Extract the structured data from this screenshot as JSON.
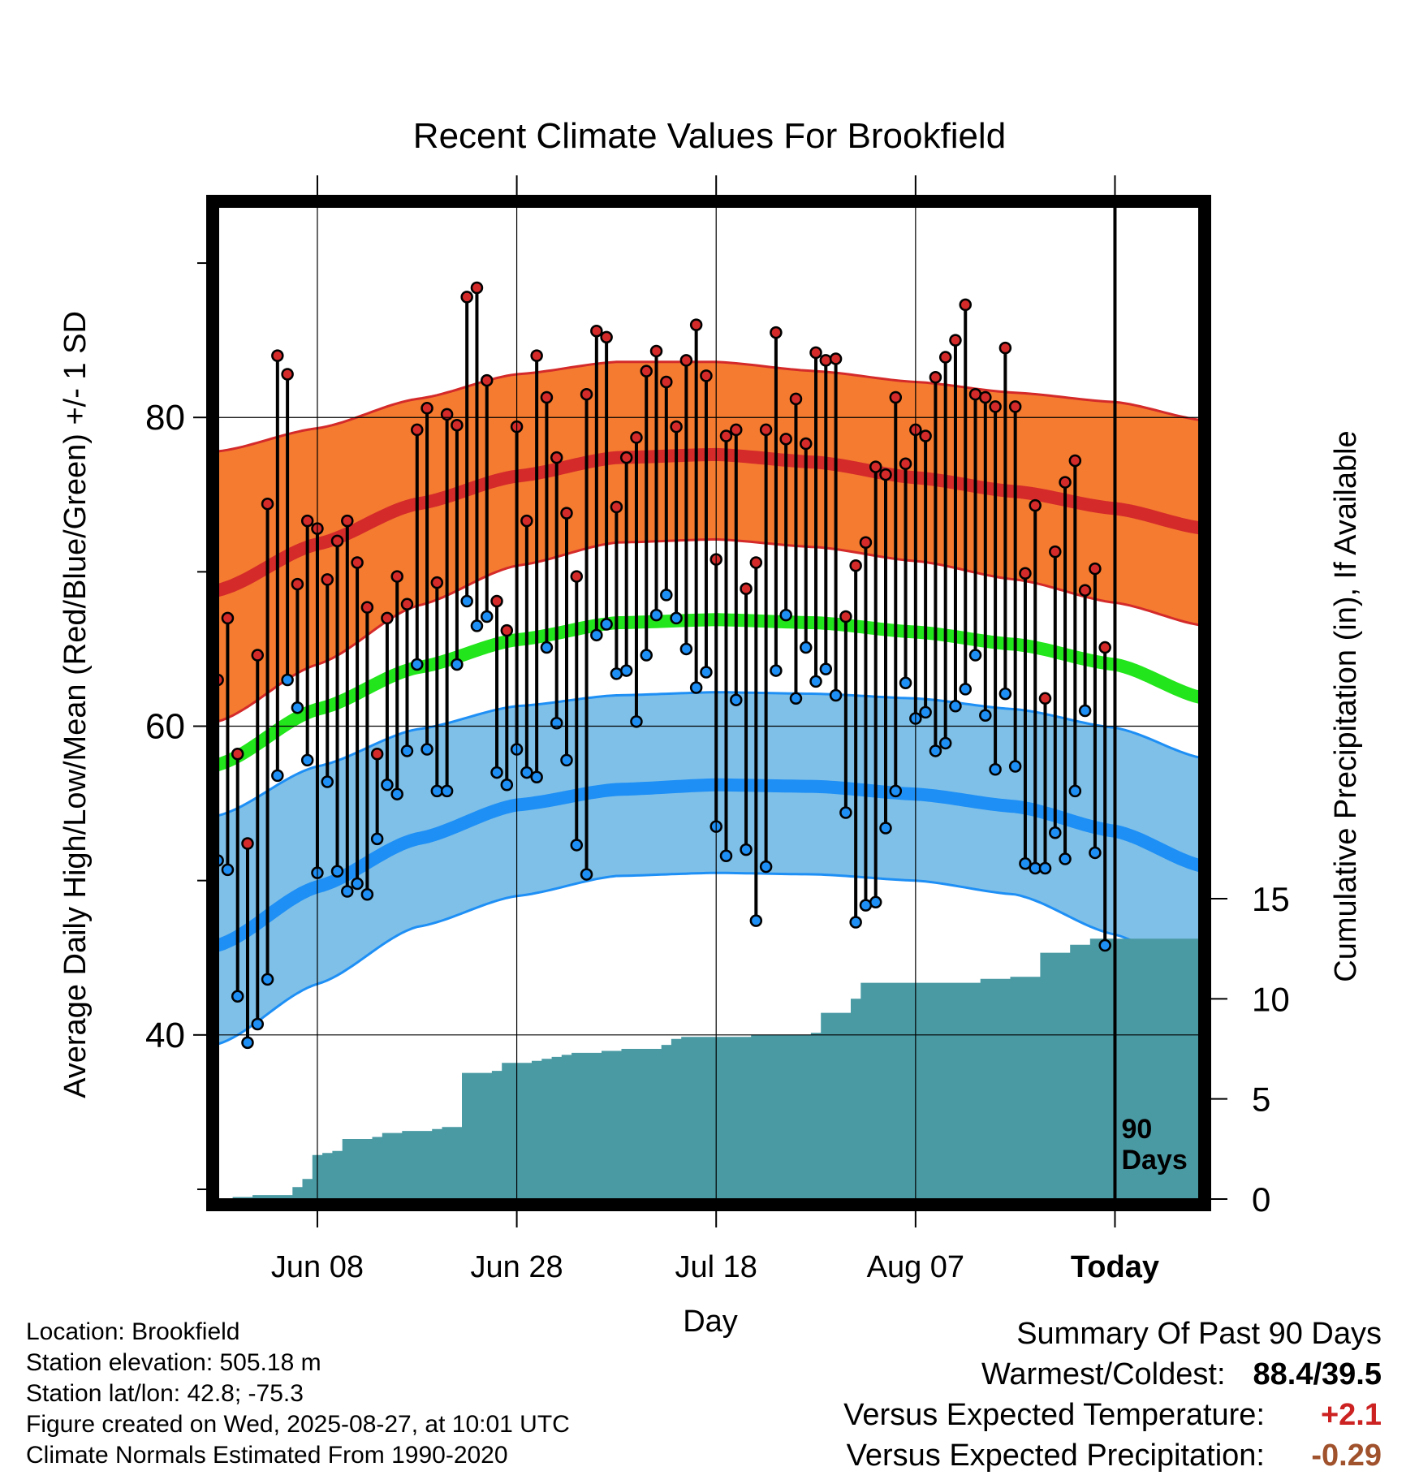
{
  "chart_data": {
    "type": "line",
    "title": "Recent Climate Values For Brookfield",
    "xlabel": "Day",
    "ylabel": "Average Daily High/Low/Mean (Red/Blue/Green) +/- 1 SD",
    "y2label": "Cumulative Precipitation (in), If Available",
    "ylim": [
      29,
      94
    ],
    "y2lim": [
      0,
      15
    ],
    "yticks": [
      "40",
      "60",
      "80"
    ],
    "y2ticks": [
      "0",
      "5",
      "10",
      "15"
    ],
    "xticks": [
      "Jun 08",
      "Jun 28",
      "Jul 18",
      "Aug 07",
      "Today"
    ],
    "x_tick_days": [
      11,
      31,
      51,
      71,
      91
    ],
    "xlim": [
      0.5,
      100
    ],
    "period_label": [
      "90",
      "Days"
    ],
    "grid": true,
    "colors": {
      "normal_high": "#d42a2a",
      "high_band": "#f47b30",
      "normal_low": "#1e8ff5",
      "low_band": "#7fc0e8",
      "normal_mean": "#22e51b",
      "precip": "#4a9aa4",
      "obs_high": "#d42a2a",
      "obs_low": "#1e8ff5"
    },
    "normals": {
      "days": [
        1,
        11,
        21,
        31,
        41,
        51,
        61,
        71,
        81,
        91,
        100
      ],
      "high": [
        68.8,
        71.8,
        74.4,
        76.2,
        77.4,
        77.6,
        77.1,
        76.1,
        75.2,
        74.1,
        72.8
      ],
      "high_upper": [
        77.8,
        79.3,
        81.2,
        82.8,
        83.6,
        83.6,
        83.0,
        82.3,
        81.6,
        81.0,
        79.8
      ],
      "high_lower": [
        60.3,
        64.0,
        67.8,
        70.4,
        71.9,
        72.1,
        71.6,
        70.7,
        69.5,
        68.0,
        66.5
      ],
      "low": [
        45.8,
        49.6,
        52.7,
        54.9,
        55.9,
        56.2,
        56.1,
        55.6,
        54.8,
        53.2,
        50.9
      ],
      "low_upper": [
        54.2,
        57.4,
        59.8,
        61.3,
        62.0,
        62.2,
        62.1,
        61.8,
        61.1,
        59.9,
        57.9
      ],
      "low_lower": [
        39.4,
        43.3,
        47.0,
        49.0,
        50.3,
        50.5,
        50.4,
        50.0,
        49.1,
        46.5,
        43.7
      ],
      "mean": [
        57.5,
        61.1,
        63.8,
        65.6,
        66.7,
        66.9,
        66.7,
        66.1,
        65.3,
        64.0,
        61.8
      ]
    },
    "observed": {
      "start_day": 1,
      "high": [
        63.0,
        67.0,
        58.2,
        52.4,
        64.6,
        74.4,
        84.0,
        82.8,
        69.2,
        73.3,
        72.8,
        69.5,
        72.0,
        73.3,
        70.6,
        67.7,
        58.2,
        67.0,
        69.7,
        67.9,
        79.2,
        80.6,
        69.3,
        80.2,
        79.5,
        87.8,
        88.4,
        82.4,
        68.1,
        66.2,
        79.4,
        73.3,
        84.0,
        81.3,
        77.4,
        73.8,
        69.7,
        81.5,
        85.6,
        85.2,
        74.2,
        77.4,
        78.7,
        83.0,
        84.3,
        82.3,
        79.4,
        83.7,
        86.0,
        82.7,
        70.8,
        78.8,
        79.2,
        68.9,
        70.6,
        79.2,
        85.5,
        78.6,
        81.2,
        78.3,
        84.2,
        83.7,
        83.8,
        67.1,
        70.4,
        71.9,
        76.8,
        76.3,
        81.3,
        77.0,
        79.2,
        78.8,
        82.6,
        83.9,
        85.0,
        87.3,
        81.5,
        81.3,
        80.7,
        84.5,
        80.7,
        69.9,
        74.3,
        61.8,
        71.3,
        75.8,
        77.2,
        68.8,
        70.2,
        65.1
      ],
      "low": [
        51.3,
        50.7,
        42.5,
        39.5,
        40.7,
        43.6,
        56.8,
        63.0,
        61.2,
        57.8,
        50.5,
        56.4,
        50.6,
        49.3,
        49.8,
        49.1,
        52.7,
        56.2,
        55.6,
        58.4,
        64.0,
        58.5,
        55.8,
        55.8,
        64.0,
        68.1,
        66.5,
        67.1,
        57.0,
        56.2,
        58.5,
        57.0,
        56.7,
        65.1,
        60.2,
        57.8,
        52.3,
        50.4,
        65.9,
        66.6,
        63.4,
        63.6,
        60.3,
        64.6,
        67.2,
        68.5,
        67.0,
        65.0,
        62.5,
        63.5,
        53.5,
        51.6,
        61.7,
        52.0,
        47.4,
        50.9,
        63.6,
        67.2,
        61.8,
        65.1,
        62.9,
        63.7,
        62.0,
        54.4,
        47.3,
        48.4,
        48.6,
        53.4,
        55.8,
        62.8,
        60.5,
        60.9,
        58.4,
        58.9,
        61.3,
        62.4,
        64.6,
        60.7,
        57.2,
        62.1,
        57.4,
        51.1,
        50.8,
        50.8,
        53.1,
        51.4,
        55.8,
        61.0,
        51.8,
        45.8
      ]
    },
    "precip_cumulative": {
      "days": [
        1,
        2,
        3,
        4,
        5,
        6,
        7,
        8,
        9,
        10,
        11,
        12,
        13,
        14,
        15,
        16,
        17,
        18,
        19,
        20,
        21,
        22,
        23,
        24,
        25,
        26,
        27,
        28,
        29,
        30,
        31,
        32,
        33,
        34,
        35,
        36,
        37,
        38,
        39,
        40,
        41,
        42,
        43,
        44,
        45,
        46,
        47,
        48,
        49,
        50,
        51,
        52,
        53,
        54,
        55,
        56,
        57,
        58,
        59,
        60,
        61,
        62,
        63,
        64,
        65,
        66,
        67,
        68,
        69,
        70,
        71,
        72,
        73,
        74,
        75,
        76,
        77,
        78,
        79,
        80,
        81,
        82,
        83,
        84,
        85,
        86,
        87,
        88,
        89,
        90
      ],
      "values": [
        0.0,
        0.0,
        0.1,
        0.1,
        0.2,
        0.2,
        0.2,
        0.2,
        0.6,
        1.0,
        2.2,
        2.3,
        2.4,
        3.0,
        3.0,
        3.0,
        3.1,
        3.3,
        3.3,
        3.4,
        3.4,
        3.4,
        3.5,
        3.6,
        3.6,
        6.3,
        6.3,
        6.3,
        6.4,
        6.8,
        6.8,
        6.8,
        6.9,
        7.0,
        7.1,
        7.2,
        7.3,
        7.3,
        7.3,
        7.4,
        7.4,
        7.5,
        7.5,
        7.5,
        7.5,
        7.7,
        8.0,
        8.1,
        8.1,
        8.1,
        8.1,
        8.1,
        8.1,
        8.1,
        8.2,
        8.2,
        8.2,
        8.2,
        8.2,
        8.2,
        8.3,
        9.3,
        9.3,
        9.3,
        10.0,
        10.8,
        10.8,
        10.8,
        10.8,
        10.8,
        10.8,
        10.8,
        10.8,
        10.8,
        10.8,
        10.8,
        10.8,
        11.0,
        11.0,
        11.0,
        11.1,
        11.1,
        11.1,
        12.3,
        12.3,
        12.3,
        12.7,
        12.7,
        13.0,
        13.0
      ],
      "after_today": 13.0
    }
  },
  "footer": {
    "location": "Location: Brookfield",
    "elevation": "Station elevation: 505.18 m",
    "latlon": "Station lat/lon: 42.8; -75.3",
    "created": "Figure created on Wed, 2025-08-27, at 10:01 UTC",
    "normals": "Climate Normals Estimated From 1990-2020"
  },
  "summary": {
    "title": "Summary Of Past 90 Days",
    "warmest_coldest_label": "Warmest/Coldest:",
    "warmest_coldest_value": "88.4/39.5",
    "temp_label": "Versus Expected Temperature:",
    "temp_value": "+2.1",
    "temp_color": "#cc2222",
    "precip_label": "Versus Expected Precipitation:",
    "precip_value": "-0.29",
    "precip_color": "#a0522d"
  }
}
